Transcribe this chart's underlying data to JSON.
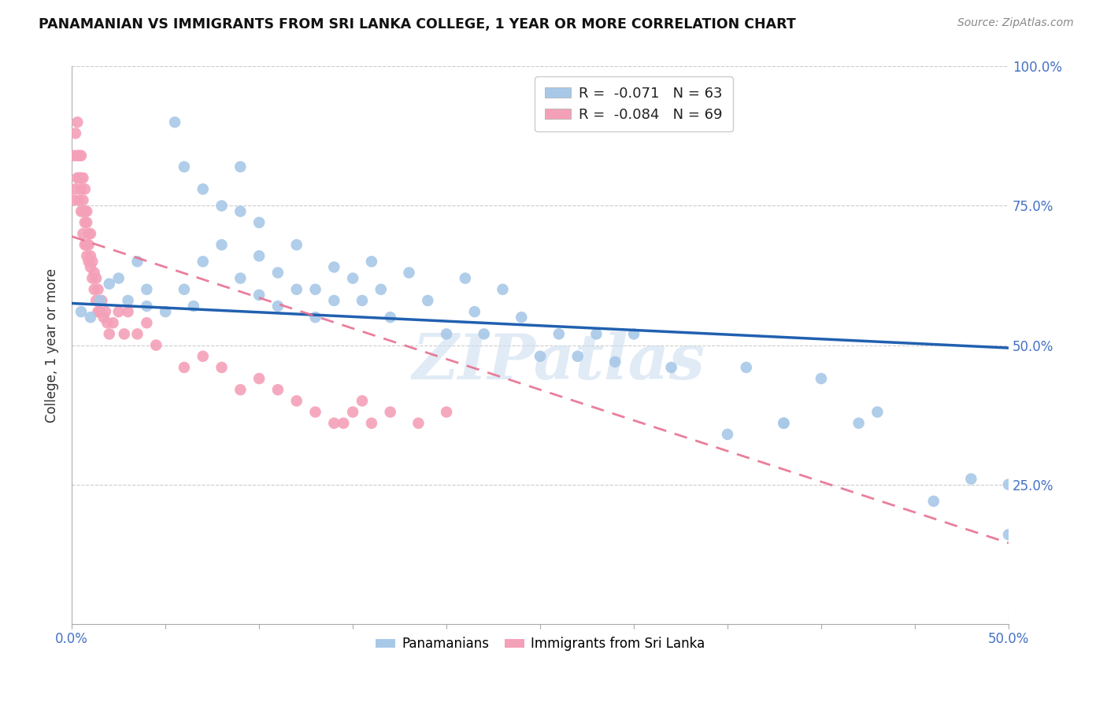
{
  "title": "PANAMANIAN VS IMMIGRANTS FROM SRI LANKA COLLEGE, 1 YEAR OR MORE CORRELATION CHART",
  "source": "Source: ZipAtlas.com",
  "ylabel": "College, 1 year or more",
  "legend_blue_label": "R =  -0.071   N = 63",
  "legend_pink_label": "R =  -0.084   N = 69",
  "legend_bottom_blue": "Panamanians",
  "legend_bottom_pink": "Immigrants from Sri Lanka",
  "blue_color": "#a8c8e8",
  "pink_color": "#f4a0b8",
  "blue_line_color": "#2060b0",
  "pink_line_color": "#e87090",
  "watermark": "ZIPatlas",
  "x_min": 0.0,
  "x_max": 0.5,
  "y_min": 0.0,
  "y_max": 1.0,
  "blue_line_x0": 0.0,
  "blue_line_x1": 0.5,
  "blue_line_y0": 0.575,
  "blue_line_y1": 0.495,
  "pink_line_x0": 0.0,
  "pink_line_x1": 0.5,
  "pink_line_y0": 0.695,
  "pink_line_y1": 0.145,
  "blue_scatter_x": [
    0.005,
    0.01,
    0.015,
    0.02,
    0.025,
    0.03,
    0.035,
    0.04,
    0.04,
    0.05,
    0.055,
    0.06,
    0.06,
    0.065,
    0.07,
    0.07,
    0.08,
    0.08,
    0.09,
    0.09,
    0.09,
    0.1,
    0.1,
    0.1,
    0.11,
    0.11,
    0.12,
    0.12,
    0.13,
    0.13,
    0.14,
    0.14,
    0.15,
    0.155,
    0.16,
    0.165,
    0.17,
    0.18,
    0.19,
    0.2,
    0.21,
    0.215,
    0.22,
    0.23,
    0.24,
    0.25,
    0.26,
    0.27,
    0.28,
    0.29,
    0.3,
    0.32,
    0.35,
    0.36,
    0.38,
    0.38,
    0.4,
    0.42,
    0.43,
    0.46,
    0.48,
    0.5,
    0.5
  ],
  "blue_scatter_y": [
    0.56,
    0.55,
    0.58,
    0.61,
    0.62,
    0.58,
    0.65,
    0.57,
    0.6,
    0.56,
    0.9,
    0.82,
    0.6,
    0.57,
    0.78,
    0.65,
    0.75,
    0.68,
    0.82,
    0.74,
    0.62,
    0.72,
    0.66,
    0.59,
    0.63,
    0.57,
    0.68,
    0.6,
    0.6,
    0.55,
    0.64,
    0.58,
    0.62,
    0.58,
    0.65,
    0.6,
    0.55,
    0.63,
    0.58,
    0.52,
    0.62,
    0.56,
    0.52,
    0.6,
    0.55,
    0.48,
    0.52,
    0.48,
    0.52,
    0.47,
    0.52,
    0.46,
    0.34,
    0.46,
    0.36,
    0.36,
    0.44,
    0.36,
    0.38,
    0.22,
    0.26,
    0.16,
    0.25
  ],
  "pink_scatter_x": [
    0.001,
    0.001,
    0.002,
    0.002,
    0.003,
    0.003,
    0.003,
    0.004,
    0.004,
    0.004,
    0.005,
    0.005,
    0.005,
    0.005,
    0.006,
    0.006,
    0.006,
    0.006,
    0.007,
    0.007,
    0.007,
    0.007,
    0.008,
    0.008,
    0.008,
    0.008,
    0.009,
    0.009,
    0.009,
    0.01,
    0.01,
    0.01,
    0.011,
    0.011,
    0.012,
    0.012,
    0.013,
    0.013,
    0.014,
    0.014,
    0.015,
    0.016,
    0.017,
    0.018,
    0.019,
    0.02,
    0.022,
    0.025,
    0.028,
    0.03,
    0.035,
    0.04,
    0.045,
    0.06,
    0.07,
    0.08,
    0.09,
    0.1,
    0.11,
    0.12,
    0.13,
    0.14,
    0.145,
    0.15,
    0.155,
    0.16,
    0.17,
    0.185,
    0.2
  ],
  "pink_scatter_y": [
    0.76,
    0.84,
    0.78,
    0.88,
    0.8,
    0.84,
    0.9,
    0.76,
    0.8,
    0.84,
    0.74,
    0.78,
    0.8,
    0.84,
    0.7,
    0.74,
    0.76,
    0.8,
    0.68,
    0.72,
    0.74,
    0.78,
    0.66,
    0.68,
    0.72,
    0.74,
    0.65,
    0.68,
    0.7,
    0.64,
    0.66,
    0.7,
    0.62,
    0.65,
    0.6,
    0.63,
    0.58,
    0.62,
    0.56,
    0.6,
    0.56,
    0.58,
    0.55,
    0.56,
    0.54,
    0.52,
    0.54,
    0.56,
    0.52,
    0.56,
    0.52,
    0.54,
    0.5,
    0.46,
    0.48,
    0.46,
    0.42,
    0.44,
    0.42,
    0.4,
    0.38,
    0.36,
    0.36,
    0.38,
    0.4,
    0.36,
    0.38,
    0.36,
    0.38
  ]
}
